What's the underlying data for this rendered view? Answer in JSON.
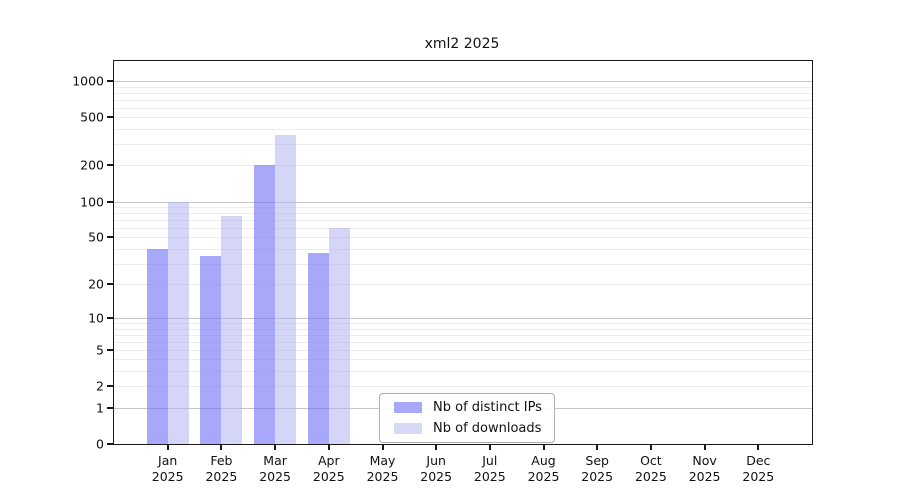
{
  "title": "xml2 2025",
  "colors": {
    "background": "#ffffff",
    "axis": "#1a1a1a",
    "major_grid": "#c6c6c6",
    "minor_grid": "#ececec",
    "text": "#111111",
    "distinct_ips_bar": "#a8a8f8",
    "downloads_bar": "#d8d8f7"
  },
  "chart_data": {
    "type": "bar",
    "title": "xml2 2025",
    "x_axis": {
      "categories": [
        "Jan",
        "Feb",
        "Mar",
        "Apr",
        "May",
        "Jun",
        "Jul",
        "Aug",
        "Sep",
        "Oct",
        "Nov",
        "Dec"
      ],
      "year_label": "2025"
    },
    "y_axis": {
      "scale": "log1p",
      "ticks": [
        0,
        1,
        2,
        5,
        10,
        20,
        50,
        100,
        200,
        500,
        1000
      ],
      "major_gridlines": [
        1,
        10,
        100,
        1000
      ],
      "minor_gridlines": [
        2,
        3,
        4,
        5,
        6,
        7,
        8,
        9,
        20,
        30,
        40,
        50,
        60,
        70,
        80,
        90,
        200,
        300,
        400,
        500,
        600,
        700,
        800,
        900
      ],
      "ylim": [
        0,
        1400
      ],
      "grid": true
    },
    "series": [
      {
        "name": "Nb of distinct IPs",
        "legend_color": "#a8a8f8",
        "bar_color": "rgba(115,115,247,0.62)",
        "values": [
          40,
          35,
          200,
          37,
          0,
          0,
          0,
          0,
          0,
          0,
          0,
          0
        ]
      },
      {
        "name": "Nb of downloads",
        "legend_color": "#d8d8f7",
        "bar_color": "rgba(175,175,240,0.52)",
        "values": [
          100,
          75,
          360,
          60,
          0,
          0,
          0,
          0,
          0,
          0,
          0,
          0
        ]
      }
    ],
    "legend_position": "bottom-center"
  }
}
